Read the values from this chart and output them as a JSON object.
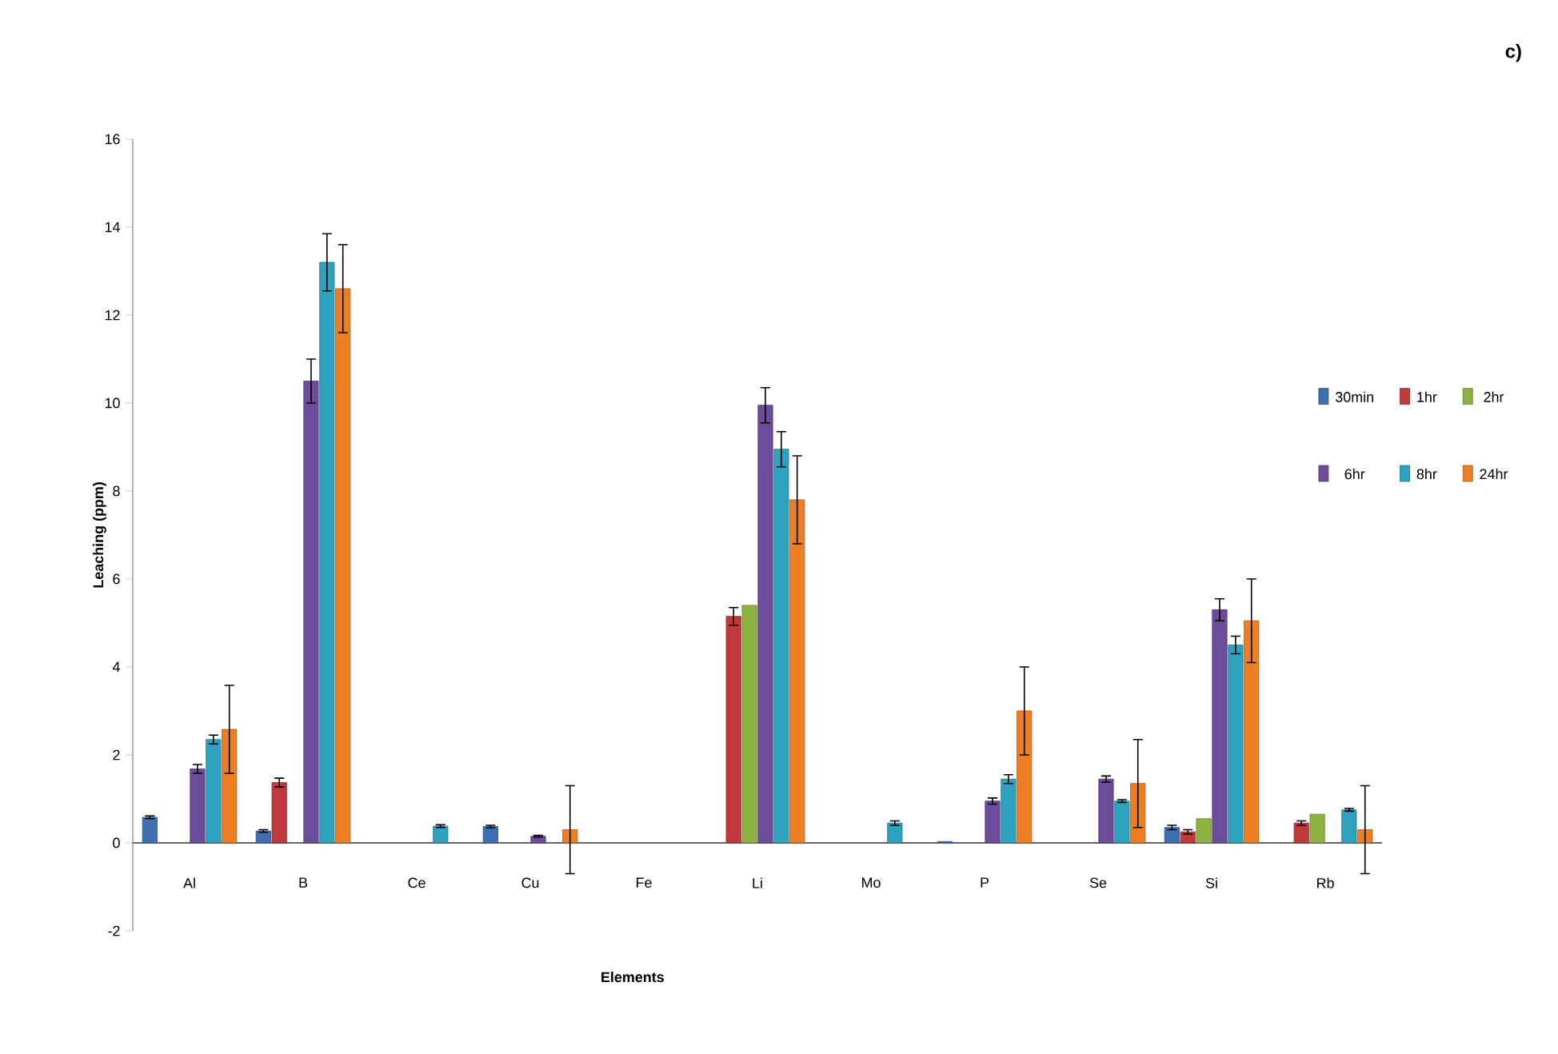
{
  "chart_data": {
    "type": "bar",
    "xlabel": "Elements",
    "ylabel": "Leaching (ppm)",
    "annotations": [
      "c)"
    ],
    "categories": [
      "Al",
      "B",
      "Ce",
      "Cu",
      "Fe",
      "Li",
      "Mo",
      "P",
      "Se",
      "Si",
      "Rb"
    ],
    "ylim": [
      -2,
      16
    ],
    "yticks": [
      -2,
      0,
      2,
      4,
      6,
      8,
      10,
      12,
      14,
      16
    ],
    "legend": "right",
    "grid": false,
    "series": [
      {
        "name": "30min",
        "color": "#3e6fb0",
        "values": [
          0.58,
          0.27,
          null,
          0.37,
          null,
          null,
          null,
          0.03,
          null,
          0.35,
          null
        ],
        "errors": [
          0.03,
          0.03,
          null,
          0.03,
          null,
          null,
          null,
          null,
          null,
          0.05,
          null
        ]
      },
      {
        "name": "1hr",
        "color": "#c0393b",
        "values": [
          null,
          1.37,
          null,
          null,
          null,
          5.15,
          null,
          null,
          null,
          0.25,
          0.45
        ],
        "errors": [
          null,
          0.1,
          null,
          null,
          null,
          0.2,
          null,
          null,
          null,
          0.05,
          0.05
        ]
      },
      {
        "name": "2hr",
        "color": "#8db440",
        "values": [
          null,
          null,
          null,
          null,
          null,
          5.4,
          null,
          null,
          null,
          0.55,
          0.65
        ],
        "errors": [
          null,
          null,
          null,
          null,
          null,
          null,
          null,
          null,
          null,
          null,
          null
        ]
      },
      {
        "name": "6hr",
        "color": "#6e4c9c",
        "values": [
          1.68,
          10.5,
          null,
          0.15,
          null,
          9.95,
          null,
          0.95,
          1.45,
          5.3,
          null
        ],
        "errors": [
          0.1,
          0.5,
          null,
          0.02,
          null,
          0.4,
          null,
          0.07,
          0.07,
          0.25,
          null
        ]
      },
      {
        "name": "8hr",
        "color": "#2ea3c0",
        "values": [
          2.35,
          13.2,
          0.38,
          null,
          null,
          8.95,
          0.45,
          1.45,
          0.95,
          4.5,
          0.75
        ],
        "errors": [
          0.1,
          0.65,
          0.03,
          null,
          null,
          0.4,
          0.05,
          0.1,
          0.03,
          0.2,
          0.03
        ]
      },
      {
        "name": "24hr",
        "color": "#ee7e22",
        "values": [
          2.58,
          12.6,
          null,
          0.3,
          null,
          7.8,
          null,
          3.0,
          1.35,
          5.05,
          0.3
        ],
        "errors": [
          1.0,
          1.0,
          null,
          1.0,
          null,
          1.0,
          null,
          1.0,
          1.0,
          0.95,
          1.0
        ]
      }
    ]
  }
}
